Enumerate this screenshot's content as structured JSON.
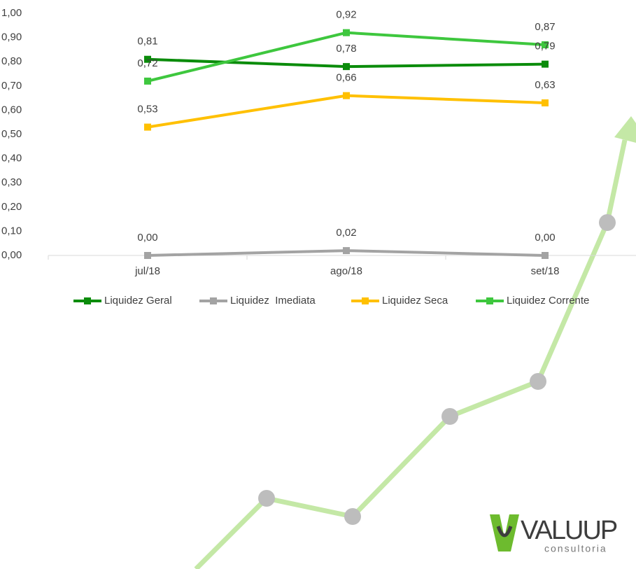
{
  "chart_data": {
    "type": "line",
    "categories": [
      "jul/18",
      "ago/18",
      "set/18"
    ],
    "series": [
      {
        "name": "Liquidez Geral",
        "color": "#0b8c0b",
        "values": [
          0.81,
          0.78,
          0.79
        ],
        "value_labels": [
          "0,81",
          "0,78",
          "0,79"
        ]
      },
      {
        "name": "Liquidez  Imediata",
        "color": "#a3a3a3",
        "values": [
          0.0,
          0.02,
          0.0
        ],
        "value_labels": [
          "0,00",
          "0,02",
          "0,00"
        ]
      },
      {
        "name": "Liquidez Seca",
        "color": "#ffc000",
        "values": [
          0.53,
          0.66,
          0.63
        ],
        "value_labels": [
          "0,53",
          "0,66",
          "0,63"
        ]
      },
      {
        "name": "Liquidez Corrente",
        "color": "#3ec73e",
        "values": [
          0.72,
          0.92,
          0.87
        ],
        "value_labels": [
          "0,72",
          "0,92",
          "0,87"
        ]
      }
    ],
    "ylim": [
      0,
      1
    ],
    "yticks": [
      {
        "value": 0,
        "label": "0,00"
      },
      {
        "value": 0.1,
        "label": "0,10"
      },
      {
        "value": 0.2,
        "label": "0,20"
      },
      {
        "value": 0.3,
        "label": "0,30"
      },
      {
        "value": 0.4,
        "label": "0,40"
      },
      {
        "value": 0.5,
        "label": "0,50"
      },
      {
        "value": 0.6,
        "label": "0,60"
      },
      {
        "value": 0.7,
        "label": "0,70"
      },
      {
        "value": 0.8,
        "label": "0,80"
      },
      {
        "value": 0.9,
        "label": "0,90"
      },
      {
        "value": 1,
        "label": "1,00"
      }
    ],
    "grid": false,
    "legend": "bottom"
  },
  "logo": {
    "name": "VALUUP",
    "tagline": "consultoria"
  }
}
